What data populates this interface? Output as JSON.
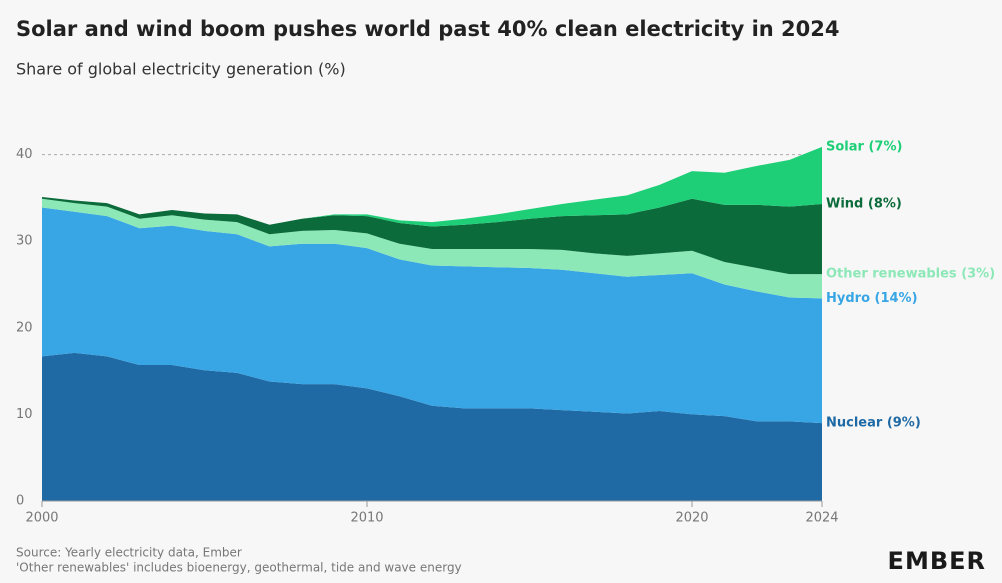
{
  "chart_data": {
    "type": "stacked_area",
    "title": "Solar and wind boom pushes world past 40% clean electricity in 2024",
    "subtitle": "Share of global electricity generation (%)",
    "x": [
      2000,
      2001,
      2002,
      2003,
      2004,
      2005,
      2006,
      2007,
      2008,
      2009,
      2010,
      2011,
      2012,
      2013,
      2014,
      2015,
      2016,
      2017,
      2018,
      2019,
      2020,
      2021,
      2022,
      2023,
      2024
    ],
    "series": [
      {
        "name": "Nuclear (9%)",
        "color": "#1f6aa5",
        "values": [
          16.7,
          17.1,
          16.7,
          15.7,
          15.7,
          15.1,
          14.8,
          13.8,
          13.5,
          13.5,
          13.0,
          12.1,
          11.0,
          10.7,
          10.7,
          10.7,
          10.5,
          10.3,
          10.1,
          10.4,
          10.0,
          9.8,
          9.2,
          9.2,
          9.0
        ]
      },
      {
        "name": "Hydro (14%)",
        "color": "#38a6e5",
        "values": [
          17.2,
          16.3,
          16.2,
          15.8,
          16.1,
          16.1,
          16.0,
          15.6,
          16.2,
          16.2,
          16.2,
          15.8,
          16.2,
          16.4,
          16.3,
          16.2,
          16.2,
          16.0,
          15.8,
          15.7,
          16.3,
          15.2,
          15.0,
          14.3,
          14.4
        ]
      },
      {
        "name": "Other renewables (3%)",
        "color": "#8de8b8",
        "values": [
          1.0,
          1.0,
          1.1,
          1.1,
          1.2,
          1.3,
          1.4,
          1.4,
          1.5,
          1.6,
          1.7,
          1.8,
          1.9,
          2.0,
          2.1,
          2.2,
          2.3,
          2.3,
          2.4,
          2.5,
          2.6,
          2.6,
          2.7,
          2.7,
          2.8
        ]
      },
      {
        "name": "Wind (8%)",
        "color": "#0b6b3a",
        "values": [
          0.2,
          0.3,
          0.4,
          0.5,
          0.6,
          0.7,
          0.9,
          1.1,
          1.4,
          1.7,
          2.0,
          2.4,
          2.6,
          2.8,
          3.1,
          3.5,
          3.9,
          4.4,
          4.8,
          5.3,
          6.0,
          6.6,
          7.3,
          7.8,
          8.1
        ]
      },
      {
        "name": "Solar (7%)",
        "color": "#1ecf78",
        "values": [
          0,
          0,
          0,
          0,
          0,
          0,
          0,
          0,
          0,
          0.1,
          0.2,
          0.3,
          0.5,
          0.7,
          0.9,
          1.1,
          1.4,
          1.8,
          2.2,
          2.6,
          3.2,
          3.7,
          4.5,
          5.4,
          6.6
        ]
      }
    ],
    "xlim": [
      2000,
      2024
    ],
    "xticks": [
      2000,
      2010,
      2020,
      2024
    ],
    "ylim": [
      0,
      42
    ],
    "yticks": [
      0,
      10,
      20,
      30,
      40
    ],
    "grid": true,
    "source": "Source: Yearly electricity data, Ember",
    "note": "'Other renewables' includes bioenergy, geothermal, tide and wave energy",
    "logo": "EMBER"
  }
}
